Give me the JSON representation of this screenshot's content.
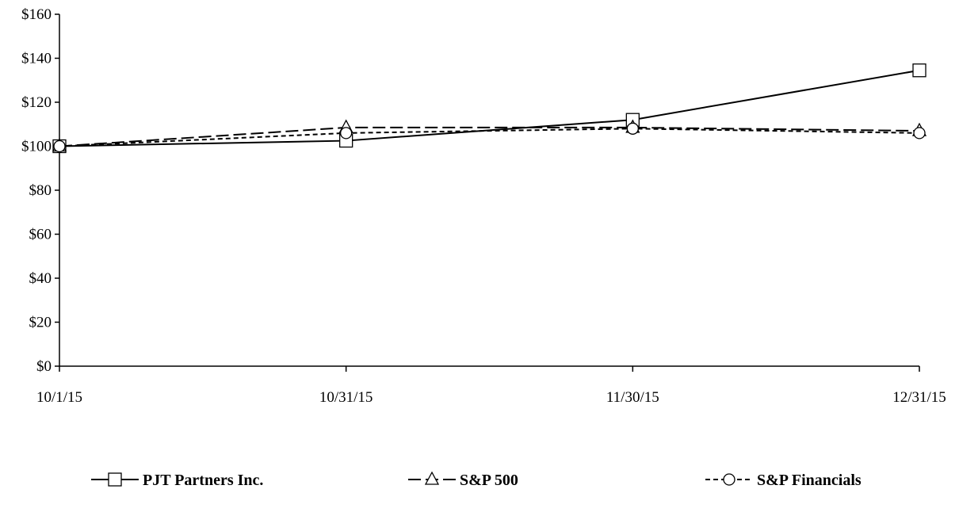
{
  "chart_data": {
    "type": "line",
    "title": "",
    "xlabel": "",
    "ylabel": "",
    "categories": [
      "10/1/15",
      "10/31/15",
      "11/30/15",
      "12/31/15"
    ],
    "ylim": [
      0,
      160
    ],
    "yticks": [
      0,
      20,
      40,
      60,
      80,
      100,
      120,
      140,
      160
    ],
    "ytick_labels": [
      "$0",
      "$20",
      "$40",
      "$60",
      "$80",
      "$100",
      "$120",
      "$140",
      "$160"
    ],
    "grid": false,
    "legend_position": "bottom",
    "series": [
      {
        "name": "PJT Partners Inc.",
        "values": [
          100,
          102.5,
          112,
          134.5
        ],
        "marker": "square",
        "dash": "solid",
        "color": "#000000"
      },
      {
        "name": "S&P 500",
        "values": [
          100,
          108.5,
          108.5,
          107
        ],
        "marker": "triangle",
        "dash": "long-dash",
        "color": "#000000"
      },
      {
        "name": "S&P Financials",
        "values": [
          100,
          106,
          108,
          106
        ],
        "marker": "circle",
        "dash": "short-dash",
        "color": "#000000"
      }
    ]
  }
}
